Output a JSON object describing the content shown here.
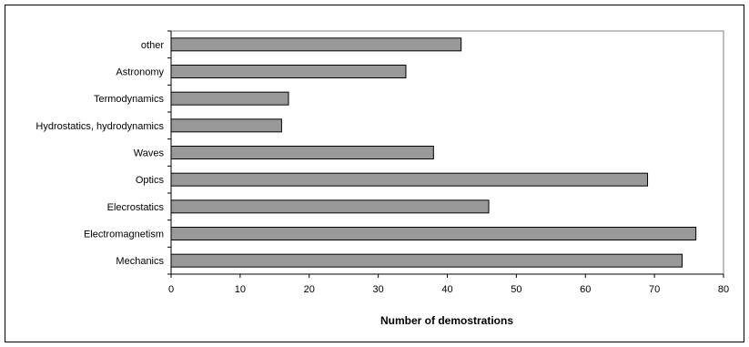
{
  "chart_data": {
    "type": "bar",
    "orientation": "horizontal",
    "categories": [
      "other",
      "Astronomy",
      "Termodynamics",
      "Hydrostatics, hydrodynamics",
      "Waves",
      "Optics",
      "Elecrostatics",
      "Electromagnetism",
      "Mechanics"
    ],
    "values": [
      42,
      34,
      17,
      16,
      38,
      69,
      46,
      76,
      74
    ],
    "title": "",
    "xlabel": "Number of demostrations",
    "ylabel": "",
    "xlim": [
      0,
      80
    ],
    "xticks": [
      "0",
      "10",
      "20",
      "30",
      "40",
      "50",
      "60",
      "70",
      "80"
    ],
    "grid": false,
    "legend": "none",
    "bar_color": "#999999",
    "bar_edge_color": "#000000",
    "plot_frame_color": "#808080"
  }
}
